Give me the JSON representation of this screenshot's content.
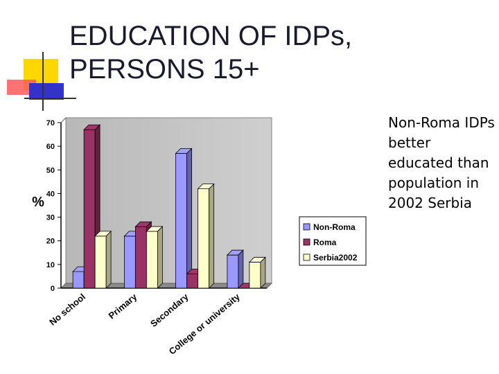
{
  "slide": {
    "title_line1": "EDUCATION OF IDPs,",
    "title_line2": "PERSONS 15+",
    "bullet_text": "Non-Roma IDPs better educated than population in 2002 Serbia"
  },
  "colors": {
    "non_roma": "#9999ff",
    "roma": "#993366",
    "serbia2002": "#ffffcc",
    "plot_bg": "#c0c0c0",
    "deco_yellow": "#ffd700",
    "deco_red": "#ff4d4d",
    "deco_blue": "#3333cc"
  },
  "chart_data": {
    "type": "bar",
    "title": "",
    "xlabel": "",
    "ylabel": "%",
    "ylim": [
      0,
      70
    ],
    "yticks": [
      0,
      10,
      20,
      30,
      40,
      50,
      60,
      70
    ],
    "categories": [
      "No school",
      "Primary",
      "Secondary",
      "College or university"
    ],
    "series": [
      {
        "name": "Non-Roma",
        "values": [
          7,
          22,
          57,
          14
        ]
      },
      {
        "name": "Roma",
        "values": [
          67,
          26,
          6,
          0
        ]
      },
      {
        "name": "Serbia2002",
        "values": [
          22,
          24,
          42,
          11
        ]
      }
    ],
    "legend": "right",
    "grid": false
  }
}
